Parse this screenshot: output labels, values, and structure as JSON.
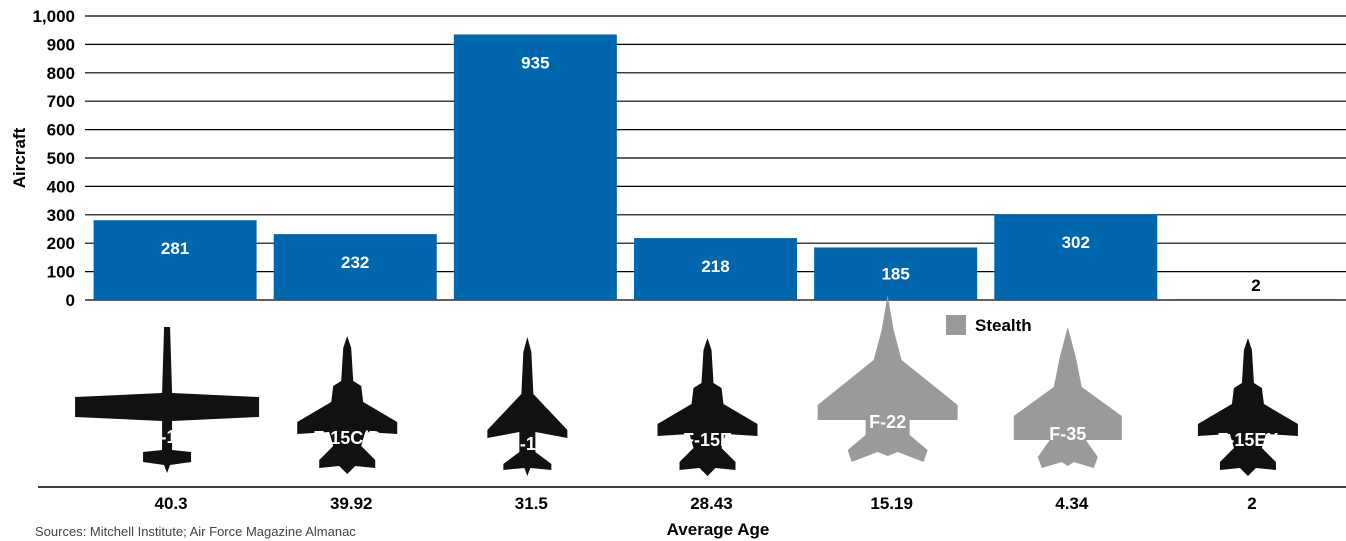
{
  "chart_data": {
    "type": "bar",
    "ylabel": "Aircraft",
    "xlabel": "Average Age",
    "ylim": [
      0,
      1000
    ],
    "yticks": [
      0,
      100,
      200,
      300,
      400,
      500,
      600,
      700,
      800,
      900,
      1000
    ],
    "ytick_labels": [
      "0",
      "100",
      "200",
      "300",
      "400",
      "500",
      "600",
      "700",
      "800",
      "900",
      "1,000"
    ],
    "grid": true,
    "categories": [
      "A-10",
      "F-15C/D",
      "F-16",
      "F-15E",
      "F-22",
      "F-35",
      "F-15EX"
    ],
    "values": [
      281,
      232,
      935,
      218,
      185,
      302,
      2
    ],
    "value_labels": [
      "281",
      "232",
      "935",
      "218",
      "185",
      "302",
      "2"
    ],
    "average_age": [
      "40.3",
      "39.92",
      "31.5",
      "28.43",
      "15.19",
      "4.34",
      "2"
    ],
    "stealth": [
      false,
      false,
      false,
      false,
      true,
      true,
      false
    ],
    "legend": {
      "label": "Stealth",
      "placement": "center-right"
    },
    "source": "Sources: Mitchell Institute; Air Force Magazine Almanac"
  },
  "colors": {
    "bar": "#0066ad",
    "plane": "#111111",
    "stealth": "#9a9a9a"
  },
  "icons": [
    "a10-silhouette-icon",
    "f15cd-silhouette-icon",
    "f16-silhouette-icon",
    "f15e-silhouette-icon",
    "f22-silhouette-icon",
    "f35-silhouette-icon",
    "f15ex-silhouette-icon"
  ]
}
